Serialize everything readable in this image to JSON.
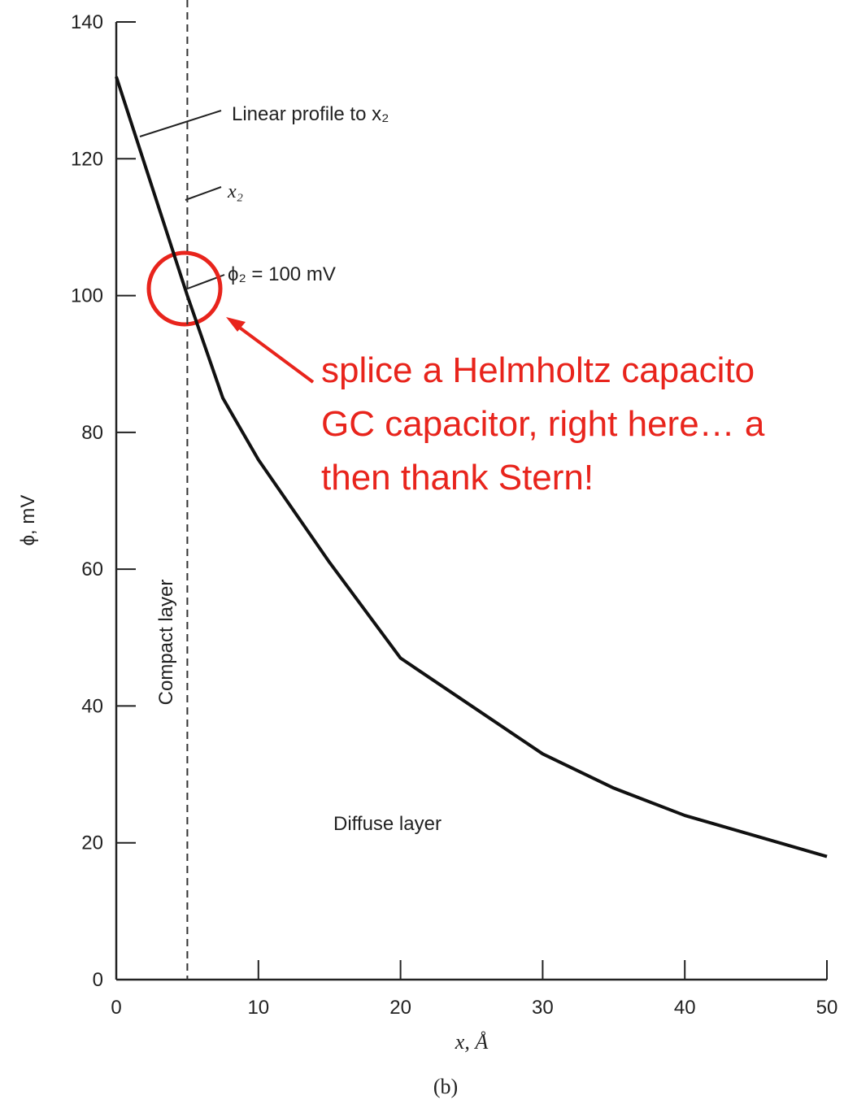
{
  "chart_data": {
    "type": "line",
    "x_label": "x, Å",
    "y_label": "ϕ, mV",
    "caption": "(b)",
    "x": [
      0,
      5,
      7.5,
      10,
      15,
      20,
      25,
      30,
      35,
      40,
      45,
      50
    ],
    "values": [
      132,
      100,
      85,
      76,
      61,
      47,
      40,
      33,
      28,
      24,
      21,
      18
    ],
    "color": "#111111",
    "xlim": [
      0,
      50
    ],
    "ylim": [
      0,
      140
    ],
    "xticks": [
      0,
      10,
      20,
      30,
      40,
      50
    ],
    "yticks": [
      0,
      20,
      40,
      60,
      80,
      100,
      120,
      140
    ],
    "grid": false,
    "boundary_x": 5,
    "annotations": [
      "Linear profile to x₂",
      "x₂",
      "ϕ₂ = 100 mV",
      "Compact layer",
      "Diffuse layer"
    ],
    "callout": [
      "splice a Helmholtz capacito",
      "GC capacitor, right here… a",
      "then thank Stern!"
    ]
  }
}
